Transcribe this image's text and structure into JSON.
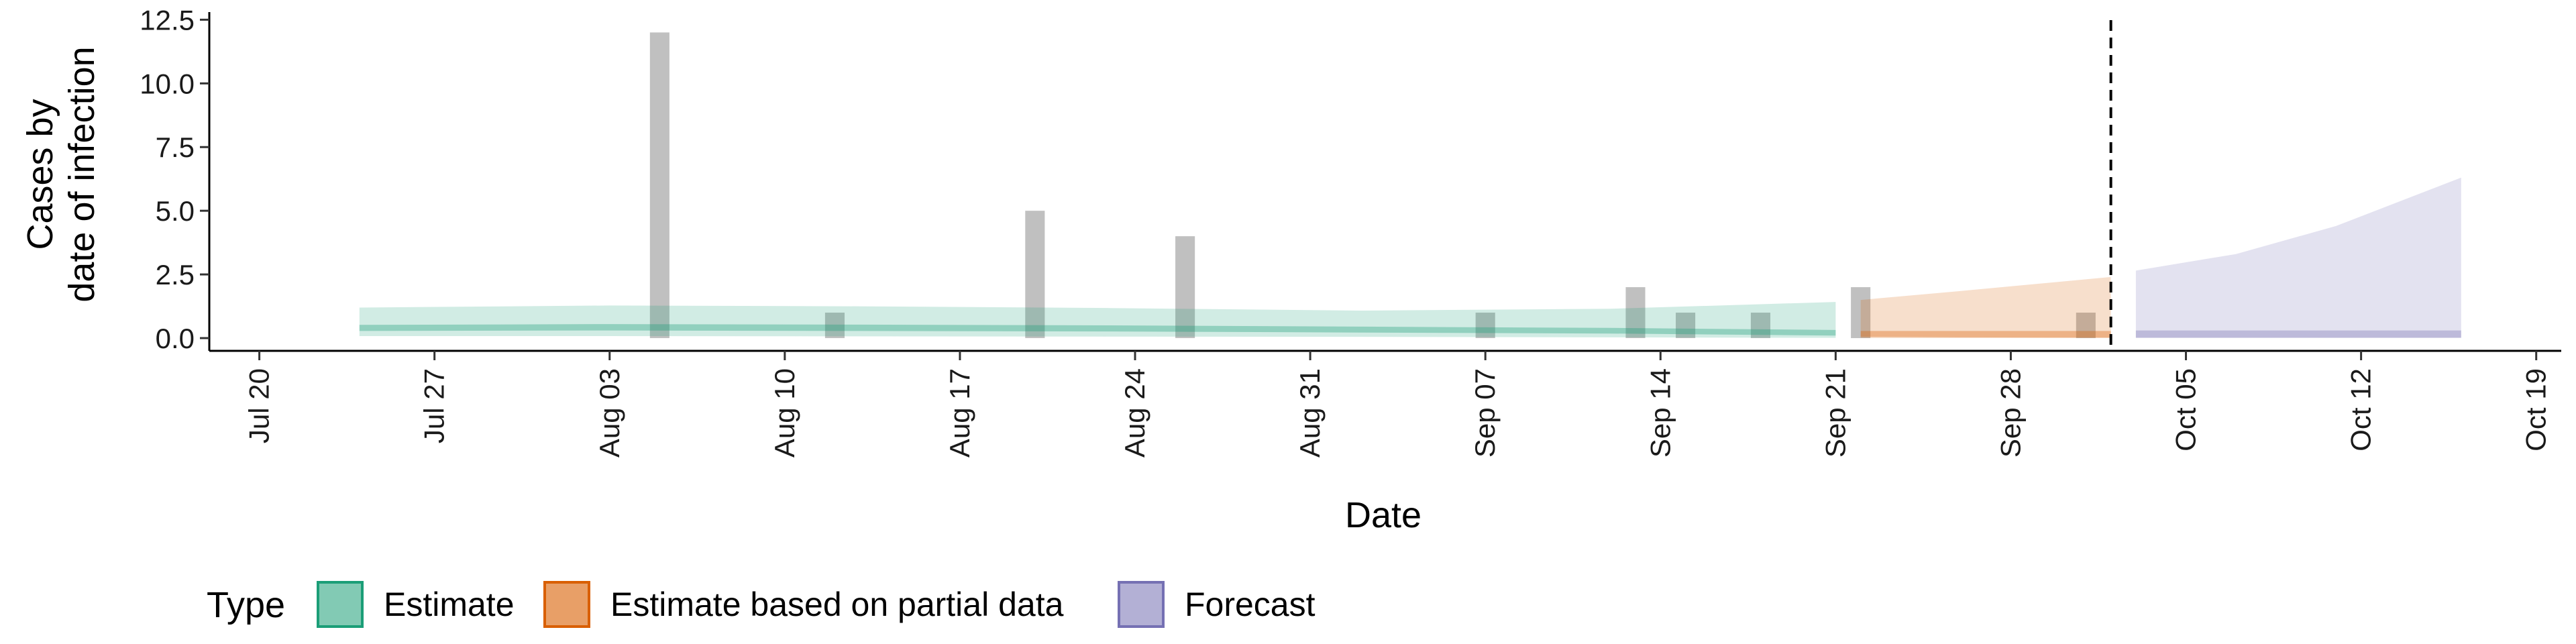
{
  "chart_data": {
    "type": "area",
    "xlabel": "Date",
    "ylabel_lines": [
      "Cases by",
      "date of infection"
    ],
    "x_range": [
      "2020-07-18",
      "2020-10-20"
    ],
    "ylim": [
      -0.5,
      12.8
    ],
    "x_ticks": [
      "2020-07-20",
      "2020-07-27",
      "2020-08-03",
      "2020-08-10",
      "2020-08-17",
      "2020-08-24",
      "2020-08-31",
      "2020-09-07",
      "2020-09-14",
      "2020-09-21",
      "2020-09-28",
      "2020-10-05",
      "2020-10-12",
      "2020-10-19"
    ],
    "x_tick_labels": [
      "Jul 20",
      "Jul 27",
      "Aug 03",
      "Aug 10",
      "Aug 17",
      "Aug 24",
      "Aug 31",
      "Sep 07",
      "Sep 14",
      "Sep 21",
      "Sep 28",
      "Oct 05",
      "Oct 12",
      "Oct 19"
    ],
    "y_ticks": [
      0.0,
      2.5,
      5.0,
      7.5,
      10.0,
      12.5
    ],
    "y_tick_labels": [
      "0.0",
      "2.5",
      "5.0",
      "7.5",
      "10.0",
      "12.5"
    ],
    "vline_date": "2020-10-02",
    "bars": [
      {
        "date": "2020-08-05",
        "value": 12
      },
      {
        "date": "2020-08-12",
        "value": 1
      },
      {
        "date": "2020-08-20",
        "value": 5
      },
      {
        "date": "2020-08-26",
        "value": 4
      },
      {
        "date": "2020-09-07",
        "value": 1
      },
      {
        "date": "2020-09-13",
        "value": 2
      },
      {
        "date": "2020-09-15",
        "value": 1
      },
      {
        "date": "2020-09-18",
        "value": 1
      },
      {
        "date": "2020-09-22",
        "value": 2
      },
      {
        "date": "2020-10-01",
        "value": 1
      }
    ],
    "bands": [
      {
        "type": "Estimate",
        "color": "#1b9e77",
        "points": [
          {
            "date": "2020-07-24",
            "lower90": 0.08,
            "upper90": 1.2,
            "lower50": 0.28,
            "upper50": 0.52
          },
          {
            "date": "2020-08-03",
            "lower90": 0.08,
            "upper90": 1.28,
            "lower50": 0.3,
            "upper50": 0.55
          },
          {
            "date": "2020-08-13",
            "lower90": 0.07,
            "upper90": 1.25,
            "lower50": 0.28,
            "upper50": 0.53
          },
          {
            "date": "2020-08-23",
            "lower90": 0.06,
            "upper90": 1.18,
            "lower50": 0.26,
            "upper50": 0.5
          },
          {
            "date": "2020-09-02",
            "lower90": 0.05,
            "upper90": 1.08,
            "lower50": 0.22,
            "upper50": 0.45
          },
          {
            "date": "2020-09-12",
            "lower90": 0.03,
            "upper90": 1.15,
            "lower50": 0.18,
            "upper50": 0.4
          },
          {
            "date": "2020-09-21",
            "lower90": 0.01,
            "upper90": 1.42,
            "lower50": 0.1,
            "upper50": 0.32
          }
        ]
      },
      {
        "type": "Estimate based on partial data",
        "color": "#d95f02",
        "points": [
          {
            "date": "2020-09-22",
            "lower90": 0.0,
            "upper90": 1.5,
            "lower50": 0.05,
            "upper50": 0.28
          },
          {
            "date": "2020-09-26",
            "lower90": 0.0,
            "upper90": 1.85,
            "lower50": 0.03,
            "upper50": 0.28
          },
          {
            "date": "2020-10-02",
            "lower90": 0.0,
            "upper90": 2.4,
            "lower50": 0.02,
            "upper50": 0.28
          }
        ]
      },
      {
        "type": "Forecast",
        "color": "#7570b3",
        "points": [
          {
            "date": "2020-10-03",
            "lower90": 0.0,
            "upper90": 2.65,
            "lower50": 0.02,
            "upper50": 0.3
          },
          {
            "date": "2020-10-07",
            "lower90": 0.0,
            "upper90": 3.3,
            "lower50": 0.02,
            "upper50": 0.3
          },
          {
            "date": "2020-10-11",
            "lower90": 0.0,
            "upper90": 4.4,
            "lower50": 0.02,
            "upper50": 0.3
          },
          {
            "date": "2020-10-16",
            "lower90": 0.0,
            "upper90": 6.3,
            "lower50": 0.02,
            "upper50": 0.3
          }
        ]
      }
    ],
    "legend": {
      "title": "Type",
      "position": "bottom",
      "items": [
        {
          "label": "Estimate",
          "color": "#1b9e77"
        },
        {
          "label": "Estimate based on partial data",
          "color": "#d95f02"
        },
        {
          "label": "Forecast",
          "color": "#7570b3"
        }
      ]
    }
  }
}
